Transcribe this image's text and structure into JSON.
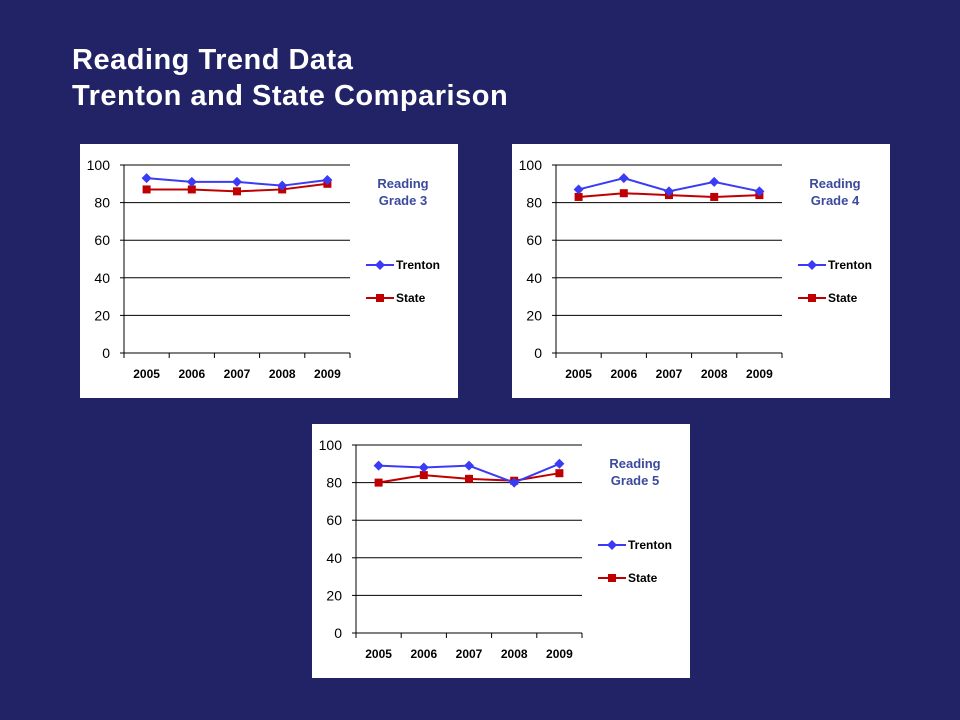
{
  "slide": {
    "title_line1": "Reading Trend Data",
    "title_line2": "Trenton and State Comparison"
  },
  "colors": {
    "background": "#222266",
    "trenton": "#3b3bf5",
    "state": "#c00000",
    "chart_title": "#3b4a9c"
  },
  "chart_data": [
    {
      "type": "line",
      "title": "Reading Grade 3",
      "title_lines": [
        "Reading",
        "Grade 3"
      ],
      "categories": [
        "2005",
        "2006",
        "2007",
        "2008",
        "2009"
      ],
      "ylim": [
        0,
        100
      ],
      "yticks": [
        0,
        20,
        40,
        60,
        80,
        100
      ],
      "grid": true,
      "legend": "right",
      "series": [
        {
          "name": "Trenton",
          "values": [
            93,
            91,
            91,
            89,
            92
          ],
          "color": "#3b3bf5",
          "marker": "diamond"
        },
        {
          "name": "State",
          "values": [
            87,
            87,
            86,
            87,
            90
          ],
          "color": "#c00000",
          "marker": "square"
        }
      ]
    },
    {
      "type": "line",
      "title": "Reading Grade 4",
      "title_lines": [
        "Reading",
        "Grade 4"
      ],
      "categories": [
        "2005",
        "2006",
        "2007",
        "2008",
        "2009"
      ],
      "ylim": [
        0,
        100
      ],
      "yticks": [
        0,
        20,
        40,
        60,
        80,
        100
      ],
      "grid": true,
      "legend": "right",
      "series": [
        {
          "name": "Trenton",
          "values": [
            87,
            93,
            86,
            91,
            86
          ],
          "color": "#3b3bf5",
          "marker": "diamond"
        },
        {
          "name": "State",
          "values": [
            83,
            85,
            84,
            83,
            84
          ],
          "color": "#c00000",
          "marker": "square"
        }
      ]
    },
    {
      "type": "line",
      "title": "Reading Grade 5",
      "title_lines": [
        "Reading",
        "Grade 5"
      ],
      "categories": [
        "2005",
        "2006",
        "2007",
        "2008",
        "2009"
      ],
      "ylim": [
        0,
        100
      ],
      "yticks": [
        0,
        20,
        40,
        60,
        80,
        100
      ],
      "grid": true,
      "legend": "right",
      "series": [
        {
          "name": "Trenton",
          "values": [
            89,
            88,
            89,
            80,
            90
          ],
          "color": "#3b3bf5",
          "marker": "diamond"
        },
        {
          "name": "State",
          "values": [
            80,
            84,
            82,
            81,
            85
          ],
          "color": "#c00000",
          "marker": "square"
        }
      ]
    }
  ]
}
